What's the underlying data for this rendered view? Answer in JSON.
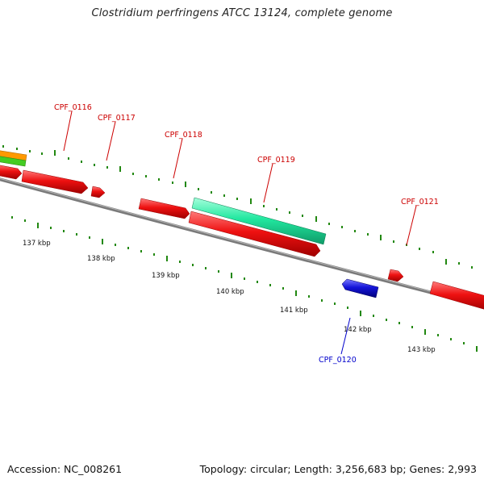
{
  "title": "Clostridium perfringens ATCC 13124, complete genome",
  "footer": {
    "accession": "Accession: NC_008261",
    "summary": "Topology: circular; Length: 3,256,683 bp; Genes: 2,993"
  },
  "colors": {
    "forward_cds": "#ee1111",
    "reverse_cds": "#1414d8",
    "other_feature": "#22e8a0",
    "orange_feature": "#ff9900",
    "green_feature": "#44cc22",
    "backbone": "#808080",
    "tick": "#228811",
    "forward_label": "#cc0000",
    "reverse_label": "#0000cc"
  },
  "scale": {
    "ticks": [
      {
        "label": "137 kbp"
      },
      {
        "label": "138 kbp"
      },
      {
        "label": "139 kbp"
      },
      {
        "label": "140 kbp"
      },
      {
        "label": "141 kbp"
      },
      {
        "label": "142 kbp"
      },
      {
        "label": "143 kbp"
      }
    ]
  },
  "genes": [
    {
      "label": "CPF_0116",
      "strand": "forward"
    },
    {
      "label": "CPF_0117",
      "strand": "forward"
    },
    {
      "label": "CPF_0118",
      "strand": "forward"
    },
    {
      "label": "CPF_0119",
      "strand": "forward"
    },
    {
      "label": "CPF_0121",
      "strand": "forward"
    },
    {
      "label": "CPF_0120",
      "strand": "reverse"
    }
  ]
}
